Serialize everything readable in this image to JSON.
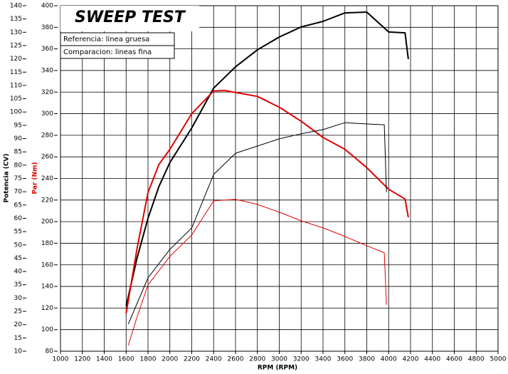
{
  "chart_data": {
    "type": "line",
    "title": "SWEEP TEST",
    "legend_lines": [
      "Referencia: linea gruesa",
      "Comparacion: lineas fina"
    ],
    "x_label": "RPM (RPM)",
    "y_label": "Potencia (CV)",
    "y2_label": "Par (Nm)",
    "y_label_color": "#000000",
    "y2_label_color": "#e00000",
    "xlim": [
      1000,
      5000
    ],
    "xticks": [
      1000,
      1200,
      1400,
      1600,
      1800,
      2000,
      2200,
      2400,
      2600,
      2800,
      3000,
      3200,
      3400,
      3600,
      3800,
      4000,
      4200,
      4400,
      4600,
      4800,
      5000
    ],
    "ylim": [
      10,
      140
    ],
    "yticks": [
      10,
      15,
      20,
      25,
      30,
      35,
      40,
      45,
      50,
      55,
      60,
      65,
      70,
      75,
      80,
      85,
      90,
      95,
      100,
      105,
      110,
      115,
      120,
      125,
      130,
      135,
      140
    ],
    "y2lim": [
      80,
      400
    ],
    "y2ticks": [
      80,
      100,
      120,
      140,
      160,
      180,
      200,
      220,
      240,
      260,
      280,
      300,
      320,
      340,
      360,
      380,
      400
    ],
    "grid": true,
    "series": [
      {
        "color": "#000000",
        "line_width": 2,
        "axis": "y",
        "x": [
          1600,
          1700,
          1800,
          1900,
          2000,
          2200,
          2400,
          2600,
          2800,
          3000,
          3200,
          3400,
          3600,
          3800,
          4000,
          4150,
          4180
        ],
        "values": [
          27,
          45,
          60,
          72,
          81,
          94,
          109,
          117,
          123.4,
          128.2,
          132,
          134.1,
          137.3,
          137.6,
          130.1,
          129.8,
          119.9
        ]
      },
      {
        "color": "#e00000",
        "line_width": 2,
        "axis": "y2",
        "x": [
          1600,
          1700,
          1800,
          1900,
          2000,
          2200,
          2400,
          2500,
          2800,
          3000,
          3200,
          3400,
          3600,
          3800,
          4000,
          4150,
          4180
        ],
        "values": [
          115,
          175,
          227,
          253,
          267,
          300,
          321,
          321.5,
          316,
          306,
          293,
          278,
          267,
          250,
          230,
          221,
          204
        ]
      },
      {
        "color": "#000000",
        "line_width": 1,
        "axis": "y",
        "x": [
          1620,
          1800,
          2000,
          2200,
          2400,
          2600,
          2800,
          3000,
          3200,
          3400,
          3600,
          3800,
          3960,
          3980
        ],
        "values": [
          20.2,
          37.6,
          48.3,
          56.4,
          76.5,
          84.5,
          87.2,
          89.9,
          91.8,
          93.4,
          96,
          95.5,
          95.2,
          69.8
        ]
      },
      {
        "color": "#e00000",
        "line_width": 1,
        "axis": "y2",
        "x": [
          1620,
          1700,
          1800,
          2000,
          2200,
          2400,
          2600,
          2800,
          3000,
          3200,
          3400,
          3600,
          3800,
          3960,
          3980
        ],
        "values": [
          85.4,
          111.7,
          141.4,
          167.8,
          187.6,
          219.3,
          220.6,
          216,
          208.7,
          200.8,
          194.2,
          186.3,
          177.7,
          171.1,
          123
        ]
      }
    ]
  }
}
